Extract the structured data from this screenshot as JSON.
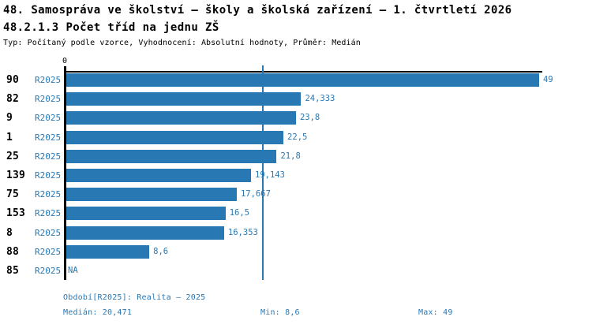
{
  "header": {
    "title": "48. Samospráva ve školství – školy a školská zařízení – 1. čtvrtletí 2026",
    "subtitle": "48.2.1.3 Počet tříd na jednu ZŠ",
    "meta": "Typ: Počítaný podle vzorce, Vyhodnocení: Absolutní hodnoty, Průměr: Medián"
  },
  "chart_data": {
    "type": "bar",
    "orientation": "horizontal",
    "title": "48.2.1.3 Počet tříd na jednu ZŠ",
    "x_axis": {
      "zero_label": "0",
      "min": 0,
      "max": 49
    },
    "grid": false,
    "legend_position": "none",
    "series_name": "R2025",
    "bar_color": "#2878b4",
    "median_line": 20.471,
    "rows": [
      {
        "category": "90",
        "series": "R2025",
        "value": 49,
        "label": "49"
      },
      {
        "category": "82",
        "series": "R2025",
        "value": 24.333,
        "label": "24,333"
      },
      {
        "category": "9",
        "series": "R2025",
        "value": 23.8,
        "label": "23,8"
      },
      {
        "category": "1",
        "series": "R2025",
        "value": 22.5,
        "label": "22,5"
      },
      {
        "category": "25",
        "series": "R2025",
        "value": 21.8,
        "label": "21,8"
      },
      {
        "category": "139",
        "series": "R2025",
        "value": 19.143,
        "label": "19,143"
      },
      {
        "category": "75",
        "series": "R2025",
        "value": 17.667,
        "label": "17,667"
      },
      {
        "category": "153",
        "series": "R2025",
        "value": 16.5,
        "label": "16,5"
      },
      {
        "category": "8",
        "series": "R2025",
        "value": 16.353,
        "label": "16,353"
      },
      {
        "category": "88",
        "series": "R2025",
        "value": 8.6,
        "label": "8,6"
      },
      {
        "category": "85",
        "series": "R2025",
        "value": null,
        "label": "NA"
      }
    ]
  },
  "footer": {
    "period": "Období[R2025]: Realita – 2025",
    "median": "Medián: 20,471",
    "min": "Min: 8,6",
    "max": "Max: 49"
  },
  "colors": {
    "accent": "#2878b4",
    "axis": "#000000",
    "background": "#ffffff"
  }
}
